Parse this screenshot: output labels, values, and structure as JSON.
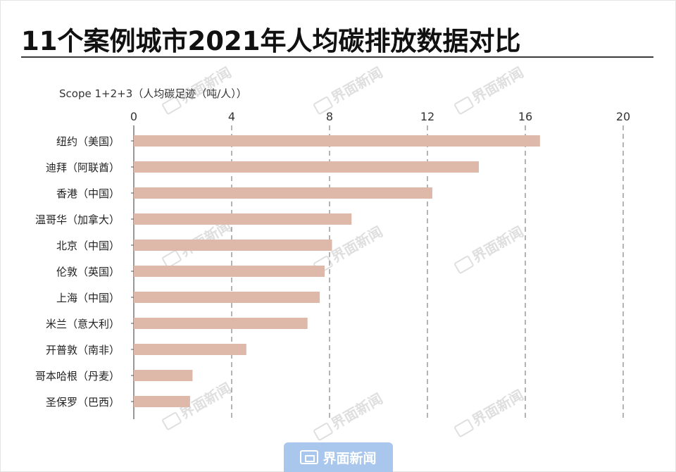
{
  "title": "11个案例城市2021年人均碳排放数据对比",
  "brand": {
    "name": "界面新闻"
  },
  "chart_data": {
    "type": "bar",
    "orientation": "horizontal",
    "axis_label": "Scope 1+2+3（人均碳足迹（吨/人））",
    "xlim": [
      0,
      20
    ],
    "ticks": [
      0,
      4,
      8,
      12,
      16,
      20
    ],
    "grid": true,
    "bar_color": "#deb9aa",
    "categories": [
      "纽约（美国）",
      "迪拜（阿联酋）",
      "香港（中国）",
      "温哥华（加拿大）",
      "北京（中国）",
      "伦敦（英国）",
      "上海（中国）",
      "米兰（意大利）",
      "开普敦（南非）",
      "哥本哈根（丹麦）",
      "圣保罗（巴西）"
    ],
    "values": [
      16.6,
      14.1,
      12.2,
      8.9,
      8.1,
      7.8,
      7.6,
      7.1,
      4.6,
      2.4,
      2.3
    ]
  }
}
